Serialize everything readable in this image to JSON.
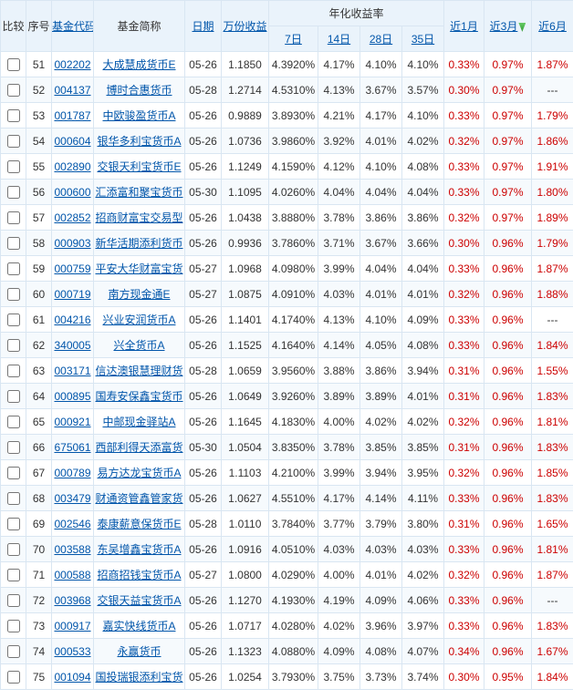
{
  "headers": {
    "compare": "比较",
    "seq": "序号",
    "code": "基金代码",
    "name": "基金简称",
    "date": "日期",
    "income": "万份收益",
    "annGroup": "年化收益率",
    "d7": "7日",
    "d14": "14日",
    "d28": "28日",
    "d35": "35日",
    "m1": "近1月",
    "m3": "近3月",
    "m6": "近6月"
  },
  "rows": [
    {
      "seq": "51",
      "code": "002202",
      "name": "大成慧成货币E",
      "date": "05-26",
      "inc": "1.1850",
      "r7": "4.3920%",
      "r14": "4.17%",
      "r28": "4.10%",
      "r35": "4.10%",
      "m1": "0.33%",
      "m3": "0.97%",
      "m6": "1.87%"
    },
    {
      "seq": "52",
      "code": "004137",
      "name": "博时合惠货币",
      "date": "05-28",
      "inc": "1.2714",
      "r7": "4.5310%",
      "r14": "4.13%",
      "r28": "3.67%",
      "r35": "3.57%",
      "m1": "0.30%",
      "m3": "0.97%",
      "m6": "---"
    },
    {
      "seq": "53",
      "code": "001787",
      "name": "中欧骏盈货币A",
      "date": "05-26",
      "inc": "0.9889",
      "r7": "3.8930%",
      "r14": "4.21%",
      "r28": "4.17%",
      "r35": "4.10%",
      "m1": "0.33%",
      "m3": "0.97%",
      "m6": "1.79%"
    },
    {
      "seq": "54",
      "code": "000604",
      "name": "银华多利宝货币A",
      "date": "05-26",
      "inc": "1.0736",
      "r7": "3.9860%",
      "r14": "3.92%",
      "r28": "4.01%",
      "r35": "4.02%",
      "m1": "0.32%",
      "m3": "0.97%",
      "m6": "1.86%"
    },
    {
      "seq": "55",
      "code": "002890",
      "name": "交银天利宝货币E",
      "date": "05-26",
      "inc": "1.1249",
      "r7": "4.1590%",
      "r14": "4.12%",
      "r28": "4.10%",
      "r35": "4.08%",
      "m1": "0.33%",
      "m3": "0.97%",
      "m6": "1.91%"
    },
    {
      "seq": "56",
      "code": "000600",
      "name": "汇添富和聚宝货币",
      "date": "05-30",
      "inc": "1.1095",
      "r7": "4.0260%",
      "r14": "4.04%",
      "r28": "4.04%",
      "r35": "4.04%",
      "m1": "0.33%",
      "m3": "0.97%",
      "m6": "1.80%"
    },
    {
      "seq": "57",
      "code": "002852",
      "name": "招商财富宝交易型",
      "date": "05-26",
      "inc": "1.0438",
      "r7": "3.8880%",
      "r14": "3.78%",
      "r28": "3.86%",
      "r35": "3.86%",
      "m1": "0.32%",
      "m3": "0.97%",
      "m6": "1.89%"
    },
    {
      "seq": "58",
      "code": "000903",
      "name": "新华活期添利货币",
      "date": "05-26",
      "inc": "0.9936",
      "r7": "3.7860%",
      "r14": "3.71%",
      "r28": "3.67%",
      "r35": "3.66%",
      "m1": "0.30%",
      "m3": "0.96%",
      "m6": "1.79%"
    },
    {
      "seq": "59",
      "code": "000759",
      "name": "平安大华财富宝货",
      "date": "05-27",
      "inc": "1.0968",
      "r7": "4.0980%",
      "r14": "3.99%",
      "r28": "4.04%",
      "r35": "4.04%",
      "m1": "0.33%",
      "m3": "0.96%",
      "m6": "1.87%"
    },
    {
      "seq": "60",
      "code": "000719",
      "name": "南方现金通E",
      "date": "05-27",
      "inc": "1.0875",
      "r7": "4.0910%",
      "r14": "4.03%",
      "r28": "4.01%",
      "r35": "4.01%",
      "m1": "0.32%",
      "m3": "0.96%",
      "m6": "1.88%"
    },
    {
      "seq": "61",
      "code": "004216",
      "name": "兴业安润货币A",
      "date": "05-26",
      "inc": "1.1401",
      "r7": "4.1740%",
      "r14": "4.13%",
      "r28": "4.10%",
      "r35": "4.09%",
      "m1": "0.33%",
      "m3": "0.96%",
      "m6": "---"
    },
    {
      "seq": "62",
      "code": "340005",
      "name": "兴全货币A",
      "date": "05-26",
      "inc": "1.1525",
      "r7": "4.1640%",
      "r14": "4.14%",
      "r28": "4.05%",
      "r35": "4.08%",
      "m1": "0.33%",
      "m3": "0.96%",
      "m6": "1.84%"
    },
    {
      "seq": "63",
      "code": "003171",
      "name": "信达澳银慧理财货",
      "date": "05-28",
      "inc": "1.0659",
      "r7": "3.9560%",
      "r14": "3.88%",
      "r28": "3.86%",
      "r35": "3.94%",
      "m1": "0.31%",
      "m3": "0.96%",
      "m6": "1.55%"
    },
    {
      "seq": "64",
      "code": "000895",
      "name": "国寿安保鑫宝货币",
      "date": "05-26",
      "inc": "1.0649",
      "r7": "3.9260%",
      "r14": "3.89%",
      "r28": "3.89%",
      "r35": "4.01%",
      "m1": "0.31%",
      "m3": "0.96%",
      "m6": "1.83%"
    },
    {
      "seq": "65",
      "code": "000921",
      "name": "中邮现金驿站A",
      "date": "05-26",
      "inc": "1.1645",
      "r7": "4.1830%",
      "r14": "4.00%",
      "r28": "4.02%",
      "r35": "4.02%",
      "m1": "0.32%",
      "m3": "0.96%",
      "m6": "1.81%"
    },
    {
      "seq": "66",
      "code": "675061",
      "name": "西部利得天添富货",
      "date": "05-30",
      "inc": "1.0504",
      "r7": "3.8350%",
      "r14": "3.78%",
      "r28": "3.85%",
      "r35": "3.85%",
      "m1": "0.31%",
      "m3": "0.96%",
      "m6": "1.83%"
    },
    {
      "seq": "67",
      "code": "000789",
      "name": "易方达龙宝货币A",
      "date": "05-26",
      "inc": "1.1103",
      "r7": "4.2100%",
      "r14": "3.99%",
      "r28": "3.94%",
      "r35": "3.95%",
      "m1": "0.32%",
      "m3": "0.96%",
      "m6": "1.85%"
    },
    {
      "seq": "68",
      "code": "003479",
      "name": "财通资管鑫管家货",
      "date": "05-26",
      "inc": "1.0627",
      "r7": "4.5510%",
      "r14": "4.17%",
      "r28": "4.14%",
      "r35": "4.11%",
      "m1": "0.33%",
      "m3": "0.96%",
      "m6": "1.83%"
    },
    {
      "seq": "69",
      "code": "002546",
      "name": "泰康薪意保货币E",
      "date": "05-28",
      "inc": "1.0110",
      "r7": "3.7840%",
      "r14": "3.77%",
      "r28": "3.79%",
      "r35": "3.80%",
      "m1": "0.31%",
      "m3": "0.96%",
      "m6": "1.65%"
    },
    {
      "seq": "70",
      "code": "003588",
      "name": "东吴增鑫宝货币A",
      "date": "05-26",
      "inc": "1.0916",
      "r7": "4.0510%",
      "r14": "4.03%",
      "r28": "4.03%",
      "r35": "4.03%",
      "m1": "0.33%",
      "m3": "0.96%",
      "m6": "1.81%"
    },
    {
      "seq": "71",
      "code": "000588",
      "name": "招商招钱宝货币A",
      "date": "05-27",
      "inc": "1.0800",
      "r7": "4.0290%",
      "r14": "4.00%",
      "r28": "4.01%",
      "r35": "4.02%",
      "m1": "0.32%",
      "m3": "0.96%",
      "m6": "1.87%"
    },
    {
      "seq": "72",
      "code": "003968",
      "name": "交银天益宝货币A",
      "date": "05-26",
      "inc": "1.1270",
      "r7": "4.1930%",
      "r14": "4.19%",
      "r28": "4.09%",
      "r35": "4.06%",
      "m1": "0.33%",
      "m3": "0.96%",
      "m6": "---"
    },
    {
      "seq": "73",
      "code": "000917",
      "name": "嘉实快线货币A",
      "date": "05-26",
      "inc": "1.0717",
      "r7": "4.0280%",
      "r14": "4.02%",
      "r28": "3.96%",
      "r35": "3.97%",
      "m1": "0.33%",
      "m3": "0.96%",
      "m6": "1.83%"
    },
    {
      "seq": "74",
      "code": "000533",
      "name": "永赢货币",
      "date": "05-26",
      "inc": "1.1323",
      "r7": "4.0880%",
      "r14": "4.09%",
      "r28": "4.08%",
      "r35": "4.07%",
      "m1": "0.34%",
      "m3": "0.96%",
      "m6": "1.67%"
    },
    {
      "seq": "75",
      "code": "001094",
      "name": "国投瑞银添利宝货",
      "date": "05-26",
      "inc": "1.0254",
      "r7": "3.7930%",
      "r14": "3.75%",
      "r28": "3.73%",
      "r35": "3.74%",
      "m1": "0.30%",
      "m3": "0.95%",
      "m6": "1.84%"
    }
  ]
}
